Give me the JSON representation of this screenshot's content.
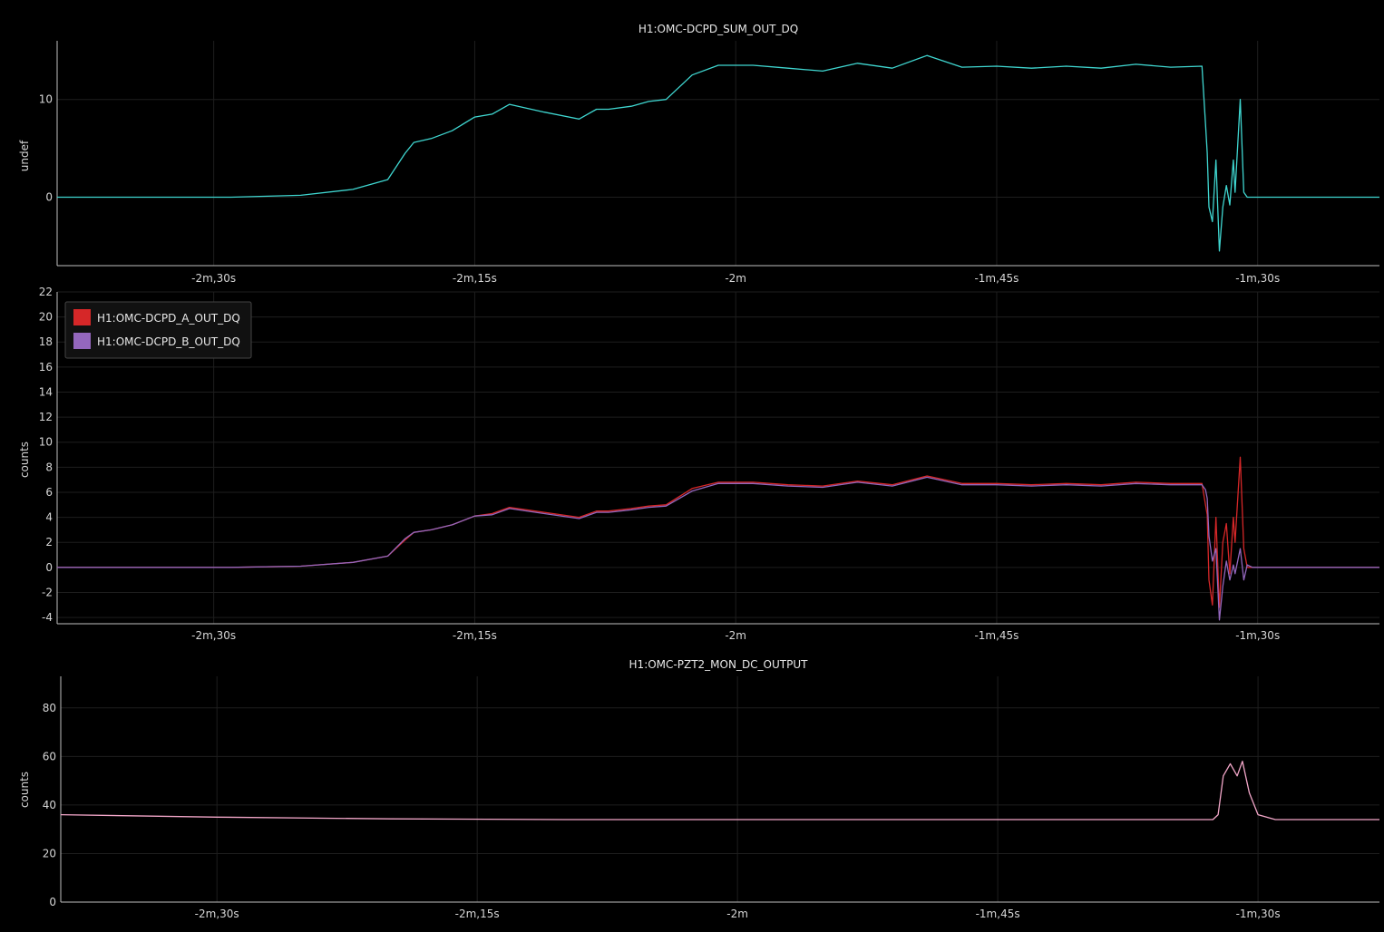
{
  "chart_data": [
    {
      "type": "line",
      "title": "H1:OMC-DCPD_SUM_OUT_DQ",
      "xlabel": "",
      "ylabel": "undef",
      "xlim": [
        -159,
        -83
      ],
      "ylim": [
        -7,
        16
      ],
      "xticks": [
        -150,
        -135,
        -120,
        -105,
        -90
      ],
      "xtick_labels": [
        "-2m,30s",
        "-2m,15s",
        "-2m",
        "-1m,45s",
        "-1m,30s"
      ],
      "yticks": [
        0,
        10
      ],
      "grid": true,
      "legend": null,
      "series": [
        {
          "color": "#3fd6d0",
          "x": [
            -159,
            -149,
            -145,
            -142,
            -140,
            -139,
            -138.5,
            -137.5,
            -136.3,
            -135,
            -134,
            -133,
            -131,
            -129,
            -128,
            -127.3,
            -126,
            -125,
            -124,
            -122.5,
            -121,
            -119,
            -117,
            -115,
            -113,
            -111,
            -109,
            -107,
            -105,
            -103,
            -101,
            -99,
            -97,
            -95,
            -93.2,
            -93,
            -92.9,
            -92.8,
            -92.6,
            -92.4,
            -92.2,
            -92,
            -91.8,
            -91.6,
            -91.4,
            -91.3,
            -91,
            -90.8,
            -90.6,
            -90.3,
            -90,
            -89.5,
            -83
          ],
          "y": [
            0,
            0,
            0.2,
            0.8,
            1.8,
            4.5,
            5.6,
            6.0,
            6.8,
            8.2,
            8.5,
            9.5,
            8.7,
            8.0,
            9.0,
            9.0,
            9.3,
            9.8,
            10.0,
            12.5,
            13.5,
            13.5,
            13.2,
            12.9,
            13.7,
            13.2,
            14.5,
            13.3,
            13.4,
            13.2,
            13.4,
            13.2,
            13.6,
            13.3,
            13.4,
            7.5,
            4.5,
            -1,
            -2.5,
            3.8,
            -5.5,
            -1,
            1.2,
            -0.8,
            3.8,
            0.5,
            10.0,
            0.5,
            0,
            0,
            0,
            0,
            0
          ]
        }
      ]
    },
    {
      "type": "line",
      "title": "",
      "xlabel": "",
      "ylabel": "counts",
      "xlim": [
        -159,
        -83
      ],
      "ylim": [
        -4.5,
        22
      ],
      "xticks": [
        -150,
        -135,
        -120,
        -105,
        -90
      ],
      "xtick_labels": [
        "-2m,30s",
        "-2m,15s",
        "-2m",
        "-1m,45s",
        "-1m,30s"
      ],
      "yticks": [
        -4,
        -2,
        0,
        2,
        4,
        6,
        8,
        10,
        12,
        14,
        16,
        18,
        20,
        22
      ],
      "grid": true,
      "legend": "top-left",
      "series": [
        {
          "name": "H1:OMC-DCPD_A_OUT_DQ",
          "color": "#d62728",
          "x": [
            -159,
            -149,
            -145,
            -142,
            -140,
            -139,
            -138.5,
            -137.5,
            -136.3,
            -135,
            -134,
            -133,
            -131,
            -129,
            -128,
            -127.3,
            -126,
            -125,
            -124,
            -122.5,
            -121,
            -119,
            -117,
            -115,
            -113,
            -111,
            -109,
            -107,
            -105,
            -103,
            -101,
            -99,
            -97,
            -95,
            -93.2,
            -93,
            -92.9,
            -92.8,
            -92.6,
            -92.4,
            -92.2,
            -92,
            -91.8,
            -91.6,
            -91.4,
            -91.3,
            -91,
            -90.8,
            -90.6,
            -90.3,
            -90,
            -89.5,
            -83
          ],
          "y": [
            0,
            0,
            0.1,
            0.4,
            0.9,
            2.2,
            2.8,
            3.0,
            3.4,
            4.1,
            4.3,
            4.8,
            4.4,
            4.0,
            4.5,
            4.5,
            4.7,
            4.9,
            5.0,
            6.3,
            6.8,
            6.8,
            6.6,
            6.5,
            6.9,
            6.6,
            7.3,
            6.7,
            6.7,
            6.6,
            6.7,
            6.6,
            6.8,
            6.7,
            6.7,
            5.0,
            4.2,
            -1.0,
            -3.0,
            4.0,
            -3.2,
            2.0,
            3.5,
            -0.5,
            4.0,
            2.0,
            8.8,
            1.5,
            0,
            0,
            0,
            0,
            0
          ]
        },
        {
          "name": "H1:OMC-DCPD_B_OUT_DQ",
          "color": "#9467bd",
          "x": [
            -159,
            -149,
            -145,
            -142,
            -140,
            -139,
            -138.5,
            -137.5,
            -136.3,
            -135,
            -134,
            -133,
            -131,
            -129,
            -128,
            -127.3,
            -126,
            -125,
            -124,
            -122.5,
            -121,
            -119,
            -117,
            -115,
            -113,
            -111,
            -109,
            -107,
            -105,
            -103,
            -101,
            -99,
            -97,
            -95,
            -93.2,
            -93,
            -92.9,
            -92.8,
            -92.6,
            -92.4,
            -92.2,
            -92,
            -91.8,
            -91.6,
            -91.4,
            -91.3,
            -91,
            -90.8,
            -90.6,
            -90.3,
            -90,
            -89.5,
            -83
          ],
          "y": [
            0,
            0,
            0.1,
            0.4,
            0.9,
            2.3,
            2.8,
            3.0,
            3.4,
            4.1,
            4.2,
            4.7,
            4.3,
            3.9,
            4.4,
            4.4,
            4.6,
            4.8,
            4.9,
            6.1,
            6.7,
            6.7,
            6.5,
            6.4,
            6.8,
            6.5,
            7.2,
            6.6,
            6.6,
            6.5,
            6.6,
            6.5,
            6.7,
            6.6,
            6.6,
            6.2,
            5.5,
            2.5,
            0.5,
            1.5,
            -4.2,
            -1.5,
            0.5,
            -1.0,
            0.2,
            -0.5,
            1.5,
            -1.0,
            0.2,
            0,
            0,
            0,
            0
          ]
        }
      ]
    },
    {
      "type": "line",
      "title": "H1:OMC-PZT2_MON_DC_OUTPUT",
      "xlabel": "",
      "ylabel": "counts",
      "xlim": [
        -159,
        -83
      ],
      "ylim": [
        0,
        93
      ],
      "xticks": [
        -150,
        -135,
        -120,
        -105,
        -90
      ],
      "xtick_labels": [
        "-2m,30s",
        "-2m,15s",
        "-2m",
        "-1m,45s",
        "-1m,30s"
      ],
      "yticks": [
        0,
        20,
        40,
        60,
        80
      ],
      "grid": true,
      "legend": null,
      "series": [
        {
          "color": "#f2a6c8",
          "x": [
            -159,
            -150,
            -140,
            -130,
            -120,
            -110,
            -100,
            -92.6,
            -92.3,
            -92.0,
            -91.6,
            -91.2,
            -90.9,
            -90.5,
            -90.0,
            -89.0,
            -83
          ],
          "y": [
            36,
            35,
            34.3,
            34,
            34,
            34,
            34,
            34,
            36,
            52,
            57,
            52,
            58,
            45,
            36,
            34,
            34
          ]
        }
      ]
    }
  ]
}
